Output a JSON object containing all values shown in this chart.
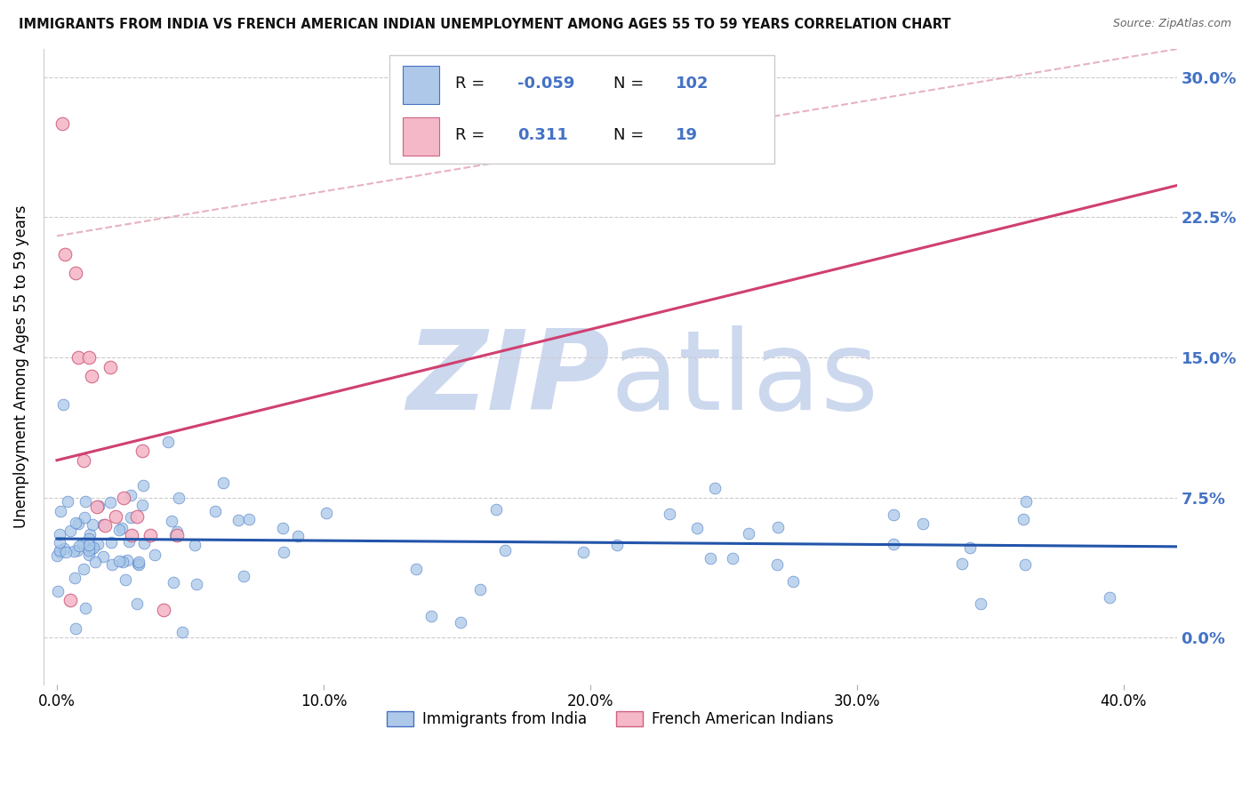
{
  "title": "IMMIGRANTS FROM INDIA VS FRENCH AMERICAN INDIAN UNEMPLOYMENT AMONG AGES 55 TO 59 YEARS CORRELATION CHART",
  "source": "Source: ZipAtlas.com",
  "ylabel": "Unemployment Among Ages 55 to 59 years",
  "xlabel_ticks": [
    "0.0%",
    "10.0%",
    "20.0%",
    "30.0%",
    "40.0%"
  ],
  "xlabel_vals": [
    0.0,
    0.1,
    0.2,
    0.3,
    0.4
  ],
  "ylabel_ticks": [
    "0.0%",
    "7.5%",
    "15.0%",
    "22.5%",
    "30.0%"
  ],
  "ylabel_vals": [
    0.0,
    0.075,
    0.15,
    0.225,
    0.3
  ],
  "xlim": [
    -0.005,
    0.42
  ],
  "ylim": [
    -0.025,
    0.315
  ],
  "india_color": "#a8c8e8",
  "india_edge": "#4472c4",
  "french_color": "#f4b8c8",
  "french_edge": "#d06080",
  "trend_india_color": "#2255aa",
  "trend_french_color": "#d04070",
  "trend_dashed_color": "#e0a0b0",
  "watermark_color": "#ccd8ee",
  "background_color": "#ffffff",
  "grid_color": "#cccccc",
  "legend_R_eq_color": "#222222",
  "legend_value_color": "#4472c4",
  "legend_N_eq_color": "#222222"
}
